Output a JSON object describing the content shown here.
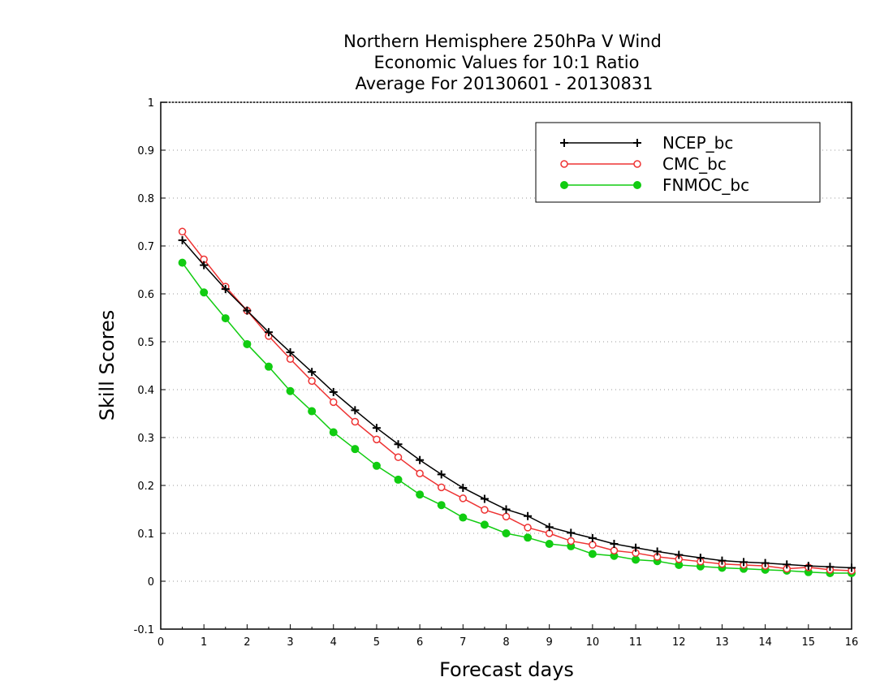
{
  "chart_data": {
    "type": "line",
    "title_lines": [
      "Northern Hemisphere 250hPa V Wind",
      "Economic Values for 10:1 Ratio",
      "Average For 20130601 - 20130831"
    ],
    "xlabel": "Forecast days",
    "ylabel": "Skill Scores",
    "xlim": [
      0,
      16
    ],
    "ylim": [
      -0.1,
      1
    ],
    "xticks": [
      0,
      1,
      2,
      3,
      4,
      5,
      6,
      7,
      8,
      9,
      10,
      11,
      12,
      13,
      14,
      15,
      16
    ],
    "yticks": [
      -0.1,
      0,
      0.1,
      0.2,
      0.3,
      0.4,
      0.5,
      0.6,
      0.7,
      0.8,
      0.9,
      1
    ],
    "ytick_labels": [
      "-0.1",
      "0",
      "0.1",
      "0.2",
      "0.3",
      "0.4",
      "0.5",
      "0.6",
      "0.7",
      "0.8",
      "0.9",
      "1"
    ],
    "grid": "horizontal dotted",
    "legend_position": "top-right",
    "x": [
      0.5,
      1,
      1.5,
      2,
      2.5,
      3,
      3.5,
      4,
      4.5,
      5,
      5.5,
      6,
      6.5,
      7,
      7.5,
      8,
      8.5,
      9,
      9.5,
      10,
      10.5,
      11,
      11.5,
      12,
      12.5,
      13,
      13.5,
      14,
      14.5,
      15,
      15.5,
      16
    ],
    "series": [
      {
        "name": "NCEP_bc",
        "color": "#000000",
        "marker": "plus",
        "values": [
          0.712,
          0.66,
          0.61,
          0.565,
          0.52,
          0.478,
          0.437,
          0.395,
          0.357,
          0.32,
          0.286,
          0.253,
          0.223,
          0.195,
          0.172,
          0.15,
          0.136,
          0.113,
          0.101,
          0.09,
          0.078,
          0.07,
          0.062,
          0.055,
          0.049,
          0.043,
          0.04,
          0.038,
          0.035,
          0.032,
          0.03,
          0.028
        ]
      },
      {
        "name": "CMC_bc",
        "color": "#ee3333",
        "marker": "open-circle",
        "values": [
          0.73,
          0.672,
          0.615,
          0.565,
          0.512,
          0.464,
          0.418,
          0.374,
          0.333,
          0.296,
          0.259,
          0.225,
          0.196,
          0.173,
          0.149,
          0.135,
          0.112,
          0.1,
          0.084,
          0.076,
          0.064,
          0.059,
          0.051,
          0.046,
          0.041,
          0.036,
          0.034,
          0.032,
          0.026,
          0.029,
          0.024,
          0.022
        ]
      },
      {
        "name": "FNMOC_bc",
        "color": "#11cc11",
        "marker": "filled-circle",
        "values": [
          0.665,
          0.603,
          0.549,
          0.495,
          0.448,
          0.397,
          0.355,
          0.311,
          0.276,
          0.241,
          0.212,
          0.181,
          0.159,
          0.133,
          0.118,
          0.1,
          0.091,
          0.078,
          0.073,
          0.057,
          0.053,
          0.045,
          0.042,
          0.034,
          0.031,
          0.028,
          0.026,
          0.024,
          0.022,
          0.019,
          0.017,
          0.017
        ]
      }
    ]
  }
}
